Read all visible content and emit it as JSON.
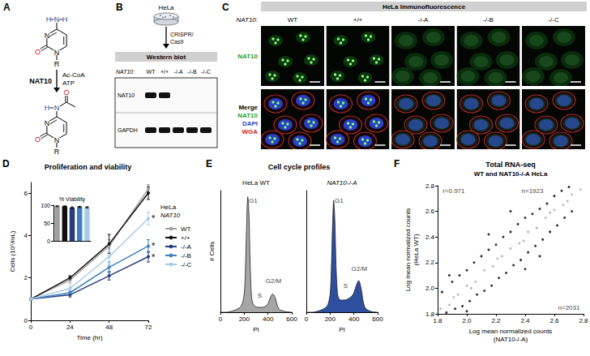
{
  "panels": {
    "A": {
      "letter": "A",
      "enzyme": "NAT10",
      "reagents": [
        "Ac-CoA",
        "ATP"
      ],
      "substrate": {
        "amine": [
          "H",
          "N",
          "H"
        ],
        "ring_atoms": [
          "N",
          "N"
        ],
        "carbonyl": "O",
        "R": "R"
      },
      "product": {
        "amide": [
          "N",
          "H"
        ],
        "acetyl": "O",
        "ring_atoms": [
          "N",
          "N"
        ],
        "carbonyl": "O",
        "R": "R"
      }
    },
    "B": {
      "letter": "B",
      "cells": "HeLa",
      "method": "CRISPR/Cas9",
      "header": "Western blot",
      "lane_heading": "NAT10:",
      "lanes": [
        "WT",
        "+/+",
        "-/-A",
        "-/-B",
        "-/-C"
      ],
      "rows": [
        {
          "label": "NAT10",
          "bands": [
            true,
            true,
            false,
            false,
            false
          ]
        },
        {
          "label": "GAPDH",
          "bands": [
            true,
            true,
            true,
            true,
            true
          ]
        }
      ]
    },
    "C": {
      "letter": "C",
      "title": "HeLa Immunofluorescence",
      "column_heading": "NAT10:",
      "columns": [
        {
          "label": "WT",
          "nucleolar_NAT10": true
        },
        {
          "label": "+/+",
          "nucleolar_NAT10": true
        },
        {
          "label": "-/-A",
          "nucleolar_NAT10": false
        },
        {
          "label": "-/-B",
          "nucleolar_NAT10": false
        },
        {
          "label": "-/-C",
          "nucleolar_NAT10": false
        }
      ],
      "rows": [
        [
          {
            "text": "NAT10",
            "color": "#22a336"
          }
        ],
        [
          {
            "text": "Merge",
            "color": "#000000"
          },
          {
            "text": "NAT10",
            "color": "#22a336"
          },
          {
            "text": "DAPI",
            "color": "#2846c8"
          },
          {
            "text": "WGA",
            "color": "#c82828"
          }
        ]
      ]
    }
  },
  "chart_data": [
    {
      "panel": "D",
      "type": "line",
      "title": "Proliferation and viability",
      "xlabel": "Time (hr)",
      "ylabel": "Cells (10⁵/mL)",
      "x": [
        0,
        24,
        48,
        72
      ],
      "xlim": [
        0,
        72
      ],
      "xticks": [
        0,
        24,
        48,
        72
      ],
      "ylim": [
        0,
        6.5
      ],
      "yticks": [
        0,
        2,
        4,
        6
      ],
      "marker": "circle",
      "legend": "right",
      "legend_title": [
        "HeLa",
        "NAT10"
      ],
      "series": [
        {
          "name": "WT",
          "color": "#a0a0a0",
          "values": [
            1,
            1.9,
            3.5,
            6.2
          ],
          "errors": [
            0.05,
            0.15,
            0.3,
            0.2
          ]
        },
        {
          "name": "+/+",
          "color": "#111111",
          "values": [
            1,
            2.0,
            3.6,
            6.0
          ],
          "errors": [
            0.05,
            0.1,
            0.45,
            0.3
          ]
        },
        {
          "name": "-/-A",
          "color": "#283c80",
          "values": [
            1,
            1.2,
            2.1,
            3.0
          ],
          "errors": [
            0.05,
            0.1,
            0.2,
            0.25
          ],
          "annotation": "*"
        },
        {
          "name": "-/-B",
          "color": "#3d7fc0",
          "values": [
            1,
            1.3,
            2.5,
            3.5
          ],
          "errors": [
            0.05,
            0.1,
            0.25,
            0.3
          ],
          "annotation": "*"
        },
        {
          "name": "-/-C",
          "color": "#a6cbe8",
          "values": [
            1,
            1.5,
            3.0,
            4.8
          ],
          "errors": [
            0.05,
            0.12,
            0.35,
            0.3
          ],
          "annotation": "*"
        }
      ],
      "inset": {
        "type": "bar",
        "title": "% Viability",
        "categories": [
          null,
          null,
          null,
          null,
          null
        ],
        "values": [
          97,
          97,
          93,
          95,
          94
        ],
        "errors": [
          1,
          1,
          2,
          1.5,
          1.5
        ],
        "colors": [
          "#a0a0a0",
          "#111111",
          "#283c80",
          "#3d7fc0",
          "#a6cbe8"
        ],
        "ylim": [
          0,
          100
        ],
        "yticks": [
          0,
          50,
          100
        ]
      }
    },
    {
      "panel": "E",
      "type": "area",
      "title": "Cell cycle profiles",
      "xlabel": "PI",
      "ylabel": "# Cells",
      "x": [
        0,
        50,
        100,
        150,
        180,
        200,
        210,
        220,
        230,
        240,
        250,
        260,
        270,
        290,
        320,
        350,
        380,
        400,
        420,
        440,
        460,
        480,
        500,
        550,
        600
      ],
      "xlim": [
        0,
        600
      ],
      "xticks": [
        0,
        200,
        400,
        600
      ],
      "ylim": [
        0,
        100
      ],
      "tick_labels": "x",
      "series": [
        {
          "name": "HeLa WT",
          "color": "#a6a6a6",
          "values": [
            0,
            0,
            1,
            3,
            6,
            15,
            35,
            70,
            95,
            80,
            40,
            15,
            8,
            5,
            4,
            4,
            5,
            7,
            12,
            15,
            12,
            5,
            2,
            0.5,
            0
          ],
          "annotations": [
            {
              "text": "G1",
              "x": 275,
              "y": 92
            },
            {
              "text": "S",
              "x": 330,
              "y": 14
            },
            {
              "text": "G2/M",
              "x": 445,
              "y": 26
            }
          ]
        },
        {
          "name": "NAT10-/-A",
          "color": "#2e4f9e",
          "values": [
            0,
            0,
            1,
            3,
            6,
            15,
            35,
            70,
            92,
            75,
            38,
            18,
            12,
            10,
            10,
            11,
            13,
            16,
            22,
            26,
            20,
            8,
            3,
            0.5,
            0
          ],
          "annotations": [
            {
              "text": "G1",
              "x": 275,
              "y": 92
            },
            {
              "text": "S",
              "x": 330,
              "y": 22
            },
            {
              "text": "G2/M",
              "x": 445,
              "y": 36
            }
          ]
        }
      ]
    },
    {
      "panel": "F",
      "type": "scatter",
      "title": "Total RNA-seq",
      "subtitle": "WT and NAT10-/-A HeLa",
      "xlabel": "Log mean normalized counts (NAT10-/-A)",
      "ylabel": "Log mean normalized counts (HeLa WT)",
      "xlim": [
        1.8,
        2.8
      ],
      "xticks": [
        1.8,
        {
          "value": 2,
          "label": "2.0"
        },
        2.2,
        2.4,
        2.6,
        2.8
      ],
      "ylim": [
        1.8,
        2.8
      ],
      "yticks": [
        1.8,
        {
          "value": 2,
          "label": "2.0"
        },
        2.2,
        2.4,
        2.6,
        2.8
      ],
      "series": [
        {
          "color": "#000000",
          "values": [
            [
              1.83,
              1.97
            ],
            [
              1.86,
              1.81
            ],
            [
              1.9,
              2.05
            ],
            [
              1.92,
              1.84
            ],
            [
              1.95,
              2.1
            ],
            [
              1.97,
              1.86
            ],
            [
              2.0,
              2.14
            ],
            [
              2.02,
              1.9
            ],
            [
              2.05,
              2.2
            ],
            [
              2.07,
              1.95
            ],
            [
              2.1,
              2.25
            ],
            [
              2.12,
              1.98
            ],
            [
              2.15,
              2.3
            ],
            [
              2.17,
              2.02
            ],
            [
              2.2,
              2.34
            ],
            [
              2.22,
              2.08
            ],
            [
              2.25,
              2.4
            ],
            [
              2.27,
              2.12
            ],
            [
              2.3,
              2.44
            ],
            [
              2.32,
              2.18
            ],
            [
              2.35,
              2.5
            ],
            [
              2.37,
              2.22
            ],
            [
              2.4,
              2.55
            ],
            [
              2.42,
              2.28
            ],
            [
              2.45,
              2.58
            ],
            [
              2.47,
              2.33
            ],
            [
              2.5,
              2.62
            ],
            [
              2.52,
              2.38
            ],
            [
              2.55,
              2.66
            ],
            [
              2.57,
              2.44
            ],
            [
              2.6,
              2.72
            ],
            [
              2.62,
              2.49
            ],
            [
              2.65,
              2.76
            ],
            [
              2.67,
              2.55
            ],
            [
              2.7,
              2.79
            ],
            [
              2.72,
              2.6
            ],
            [
              1.88,
              2.1
            ],
            [
              2.0,
              1.82
            ],
            [
              2.3,
              2.6
            ],
            [
              2.5,
              2.25
            ],
            [
              2.15,
              2.42
            ],
            [
              2.4,
              2.15
            ]
          ]
        },
        {
          "color": "#aaaaaa",
          "values": [
            [
              1.82,
              1.84
            ],
            [
              1.88,
              1.87
            ],
            [
              1.94,
              1.95
            ],
            [
              2.0,
              2.02
            ],
            [
              2.06,
              2.05
            ],
            [
              2.12,
              2.14
            ],
            [
              2.18,
              2.17
            ],
            [
              2.24,
              2.25
            ],
            [
              2.3,
              2.31
            ],
            [
              2.36,
              2.35
            ],
            [
              2.42,
              2.44
            ],
            [
              2.48,
              2.47
            ],
            [
              2.54,
              2.55
            ],
            [
              2.6,
              2.61
            ],
            [
              2.66,
              2.65
            ],
            [
              2.72,
              2.73
            ],
            [
              2.78,
              2.77
            ],
            [
              1.91,
              1.93
            ],
            [
              2.03,
              2.0
            ],
            [
              2.21,
              2.23
            ],
            [
              2.39,
              2.37
            ],
            [
              2.57,
              2.59
            ],
            [
              2.69,
              2.68
            ]
          ]
        }
      ],
      "annotations": [
        {
          "text": "r=0.971",
          "x": 1.91,
          "y": 2.76
        },
        {
          "text": "n=1923",
          "x": 2.45,
          "y": 2.76
        },
        {
          "text": "n=2031",
          "x": 2.7,
          "y": 1.85
        }
      ]
    }
  ]
}
